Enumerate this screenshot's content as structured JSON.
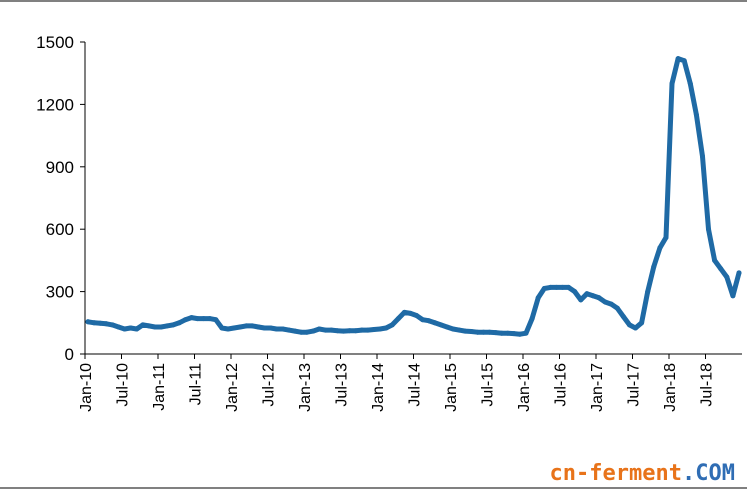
{
  "chart_data": {
    "type": "line",
    "title": "",
    "xlabel": "",
    "ylabel": "",
    "ylim": [
      0,
      1500
    ],
    "yticks": [
      0,
      300,
      600,
      900,
      1200,
      1500
    ],
    "xlim": [
      "2010-01",
      "2018-12"
    ],
    "xticks": [
      "Jan-10",
      "Jul-10",
      "Jan-11",
      "Jul-11",
      "Jan-12",
      "Jul-12",
      "Jan-13",
      "Jul-13",
      "Jan-14",
      "Jul-14",
      "Jan-15",
      "Jul-15",
      "Jan-16",
      "Jul-16",
      "Jan-17",
      "Jul-17",
      "Jan-18",
      "Jul-18"
    ],
    "grid": false,
    "legend": "none",
    "series_color": "#1f6aa5",
    "series": [
      {
        "x": [
          "2010-01",
          "2010-02",
          "2010-03",
          "2010-04",
          "2010-05",
          "2010-06",
          "2010-07",
          "2010-08",
          "2010-09",
          "2010-10",
          "2010-11",
          "2010-12",
          "2011-01",
          "2011-02",
          "2011-03",
          "2011-04",
          "2011-05",
          "2011-06",
          "2011-07",
          "2011-08",
          "2011-09",
          "2011-10",
          "2011-11",
          "2011-12",
          "2012-01",
          "2012-02",
          "2012-03",
          "2012-04",
          "2012-05",
          "2012-06",
          "2012-07",
          "2012-08",
          "2012-09",
          "2012-10",
          "2012-11",
          "2012-12",
          "2013-01",
          "2013-02",
          "2013-03",
          "2013-04",
          "2013-05",
          "2013-06",
          "2013-07",
          "2013-08",
          "2013-09",
          "2013-10",
          "2013-11",
          "2013-12",
          "2014-01",
          "2014-02",
          "2014-03",
          "2014-04",
          "2014-05",
          "2014-06",
          "2014-07",
          "2014-08",
          "2014-09",
          "2014-10",
          "2014-11",
          "2014-12",
          "2015-01",
          "2015-02",
          "2015-03",
          "2015-04",
          "2015-05",
          "2015-06",
          "2015-07",
          "2015-08",
          "2015-09",
          "2015-10",
          "2015-11",
          "2015-12",
          "2016-01",
          "2016-02",
          "2016-03",
          "2016-04",
          "2016-05",
          "2016-06",
          "2016-07",
          "2016-08",
          "2016-09",
          "2016-10",
          "2016-11",
          "2016-12",
          "2017-01",
          "2017-02",
          "2017-03",
          "2017-04",
          "2017-05",
          "2017-06",
          "2017-07",
          "2017-08",
          "2017-09",
          "2017-10",
          "2017-11",
          "2017-12",
          "2018-01",
          "2018-02",
          "2018-03",
          "2018-04",
          "2018-05",
          "2018-06",
          "2018-07",
          "2018-08",
          "2018-09",
          "2018-10",
          "2018-11",
          "2018-12"
        ],
        "values": [
          155,
          150,
          148,
          145,
          140,
          130,
          120,
          125,
          120,
          140,
          135,
          130,
          130,
          135,
          140,
          150,
          165,
          175,
          170,
          170,
          170,
          165,
          125,
          120,
          125,
          130,
          135,
          135,
          130,
          125,
          125,
          120,
          120,
          115,
          110,
          105,
          105,
          110,
          120,
          115,
          115,
          112,
          110,
          112,
          112,
          115,
          115,
          118,
          120,
          125,
          140,
          170,
          200,
          195,
          185,
          165,
          160,
          150,
          140,
          130,
          120,
          115,
          110,
          108,
          105,
          105,
          105,
          103,
          100,
          100,
          98,
          95,
          100,
          170,
          270,
          315,
          320,
          320,
          320,
          320,
          300,
          260,
          290,
          280,
          270,
          250,
          240,
          220,
          180,
          140,
          125,
          150,
          300,
          420,
          510,
          560,
          1300,
          1420,
          1410,
          1300,
          1150,
          950,
          600,
          450,
          410,
          370,
          280,
          390
        ]
      }
    ]
  },
  "watermark": {
    "part_a": "cn-",
    "part_b": "ferment",
    "part_c": ".COM"
  }
}
